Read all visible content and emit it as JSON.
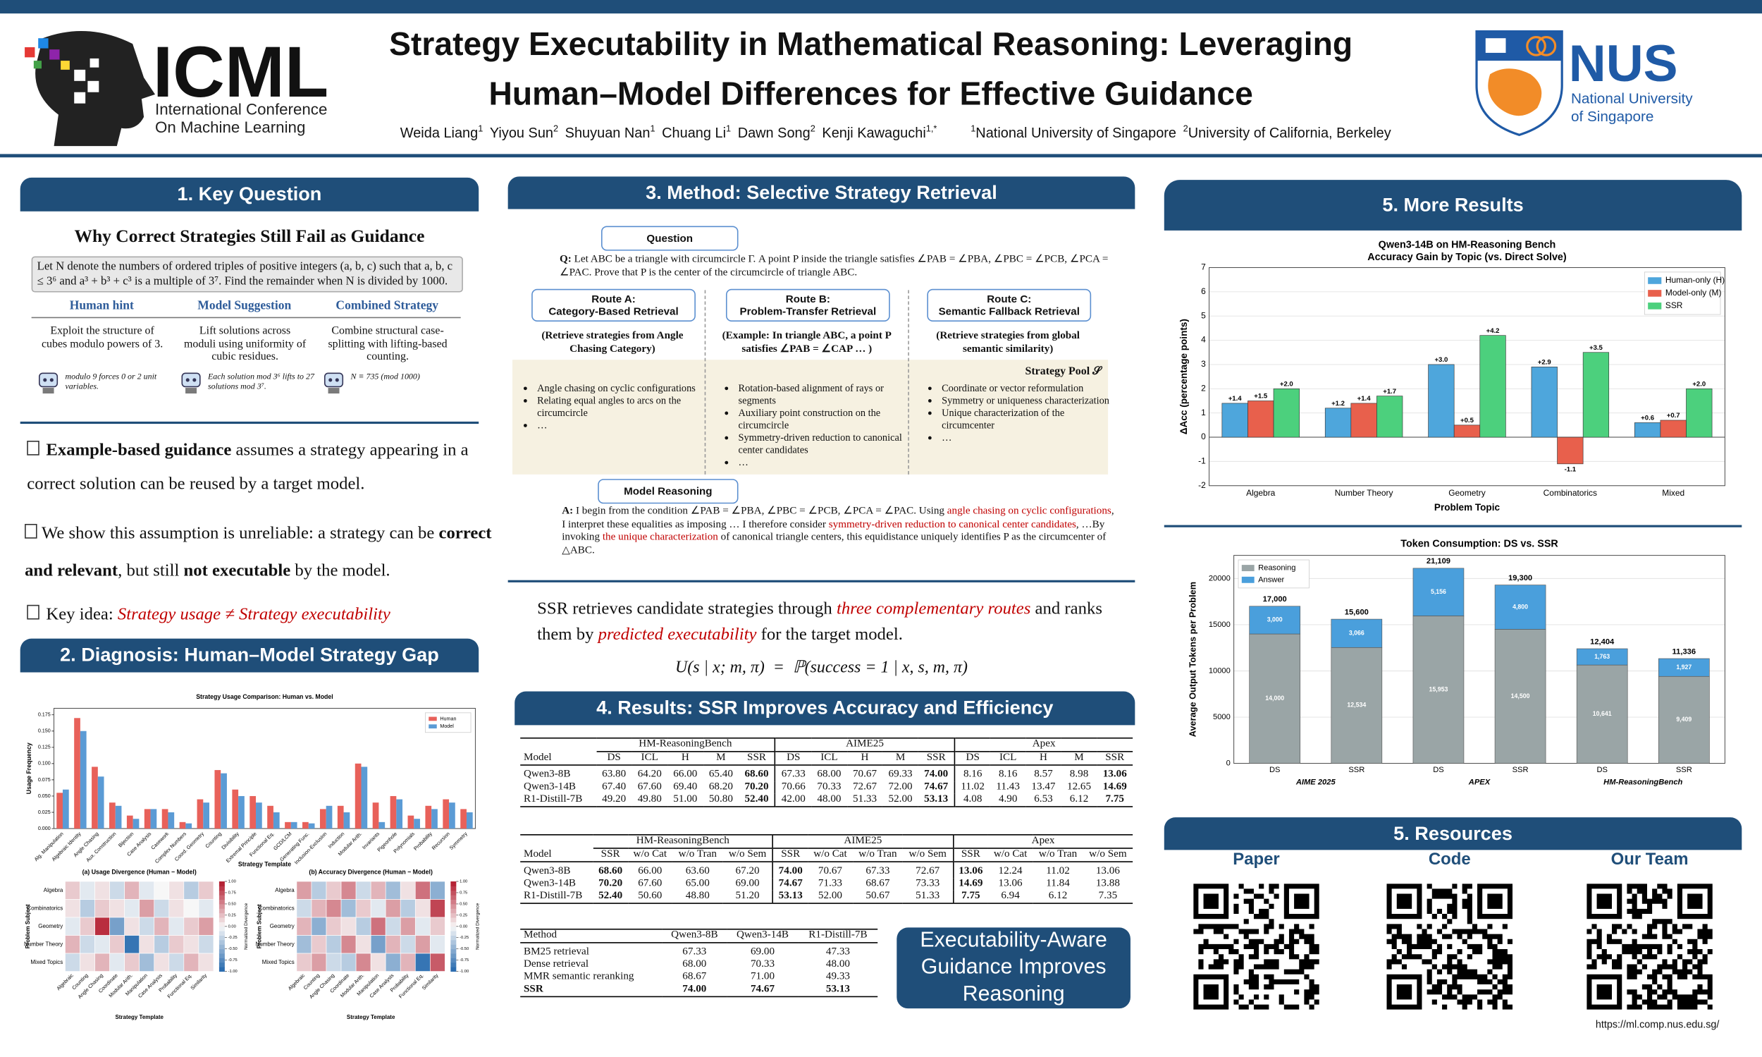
{
  "header": {
    "conference": "ICML",
    "conference_full": [
      "International Conference",
      "On Machine Learning"
    ],
    "title": [
      "Strategy Executability in Mathematical Reasoning: Leveraging",
      "Human–Model Differences for Effective Guidance"
    ],
    "authors": [
      {
        "name": "Weida Liang",
        "aff": "1"
      },
      {
        "name": "Yiyou Sun",
        "aff": "2"
      },
      {
        "name": "Shuyuan Nan",
        "aff": "1"
      },
      {
        "name": "Chuang Li",
        "aff": "1"
      },
      {
        "name": "Dawn Song",
        "aff": "2"
      },
      {
        "name": "Kenji Kawaguchi",
        "aff": "1,*"
      }
    ],
    "affiliations": [
      {
        "num": "1",
        "name": "National University of Singapore"
      },
      {
        "num": "2",
        "name": "University of California, Berkeley"
      }
    ],
    "university": "NUS",
    "university_full": [
      "National University",
      "of Singapore"
    ]
  },
  "key_question": {
    "heading": "1. Key Question",
    "subtitle": "Why Correct Strategies Still Fail as Guidance",
    "problem": "Let N denote the numbers of ordered triples of positive integers (a, b, c) such that a, b, c ≤ 3⁶ and a³ + b³ + c³ is a multiple of 3⁷. Find the remainder when N is divided by 1000.",
    "columns": [
      {
        "head": "Human hint",
        "text": "Exploit the structure of cubes modulo powers of 3.",
        "note": "modulo 9 forces 0 or 2 unit variables."
      },
      {
        "head": "Model Suggestion",
        "text": "Lift solutions across moduli using uniformity of cubic residues.",
        "note": "Each solution mod 3⁶ lifts to 27 solutions mod 3⁷."
      },
      {
        "head": "Combined Strategy",
        "text": "Combine structural case-splitting with lifting-based counting.",
        "note": "N ≡ 735 (mod 1000)"
      }
    ],
    "bullet1": [
      "Example-based guidance",
      " assumes a strategy appearing in a correct solution can be reused by a target model."
    ],
    "bullet2": [
      "We show this assumption is unreliable: a strategy can be ",
      "correct and relevant",
      ", but still ",
      "not executable",
      " by the model."
    ],
    "bullet3": [
      "Key idea: ",
      "Strategy usage ≠ Strategy executability"
    ]
  },
  "diagnosis": {
    "heading": "2. Diagnosis: Human–Model Strategy Gap"
  },
  "method": {
    "heading": "3. Method: Selective Strategy Retrieval",
    "question_label": "Question",
    "question": [
      "Q:",
      " Let ABC be a triangle with circumcircle Γ. A point P inside the triangle satisfies ∠PAB = ∠PBA, ∠PBC = ∠PCB, ∠PCA = ∠PAC. Prove that P is the center of the circumcircle of triangle ABC."
    ],
    "routes": [
      {
        "title": "Route A:",
        "name": "Category-Based Retrieval",
        "desc": "(Retrieve strategies from Angle Chasing Category)",
        "items": [
          "Angle chasing on cyclic configurations",
          "Relating equal angles to arcs on the circumcircle",
          "…"
        ]
      },
      {
        "title": "Route B:",
        "name": "Problem-Transfer Retrieval",
        "desc": "(Example: In triangle ABC, a point P satisfies ∠PAB = ∠CAP … )",
        "items": [
          "Rotation-based alignment of rays or segments",
          "Auxiliary point construction on the circumcircle",
          "Symmetry-driven reduction to canonical center candidates",
          "…"
        ]
      },
      {
        "title": "Route C:",
        "name": "Semantic Fallback Retrieval",
        "desc": "(Retrieve strategies from global semantic similarity)",
        "items": [
          "Coordinate or vector reformulation",
          "Symmetry or uniqueness characterization",
          "Unique characterization of the circumcenter",
          "…"
        ]
      }
    ],
    "pool": "Strategy Pool 𝒮",
    "reasoning_label": "Model Reasoning",
    "answer": [
      "A:",
      " I begin from the condition ∠PAB = ∠PBA, ∠PBC = ∠PCB, ∠PCA = ∠PAC. Using ",
      "angle chasing on cyclic configurations",
      ", I interpret these equalities as imposing … I therefore consider ",
      "symmetry-driven reduction to canonical center candidates",
      ", …By invoking ",
      "the unique characterization",
      " of canonical triangle centers, this equidistance uniquely identifies P as the circumcenter of △ABC."
    ],
    "summary": [
      "SSR retrieves candidate strategies through ",
      "three complementary routes",
      " and ranks them by ",
      "predicted executability",
      " for the target model."
    ],
    "formula": "U(s | x; m, π)  =  ℙ(success = 1 | x, s, m, π)"
  },
  "results": {
    "heading": "4. Results: SSR Improves Accuracy and Efficiency",
    "table1": {
      "groups": [
        "HM-ReasoningBench",
        "AIME25",
        "Apex"
      ],
      "columns": [
        "Model",
        "DS",
        "ICL",
        "H",
        "M",
        "SSR",
        "DS",
        "ICL",
        "H",
        "M",
        "SSR",
        "DS",
        "ICL",
        "H",
        "M",
        "SSR"
      ],
      "rows": [
        [
          "Qwen3-8B",
          "63.80",
          "64.20",
          "66.00",
          "65.40",
          "68.60",
          "67.33",
          "68.00",
          "70.67",
          "69.33",
          "74.00",
          "8.16",
          "8.16",
          "8.57",
          "8.98",
          "13.06"
        ],
        [
          "Qwen3-14B",
          "67.40",
          "67.60",
          "69.40",
          "68.20",
          "70.20",
          "70.66",
          "70.33",
          "72.67",
          "72.00",
          "74.67",
          "11.02",
          "11.43",
          "13.47",
          "12.65",
          "14.69"
        ],
        [
          "R1-Distill-7B",
          "49.20",
          "49.80",
          "51.00",
          "50.80",
          "52.40",
          "42.00",
          "48.00",
          "51.33",
          "52.00",
          "53.13",
          "4.08",
          "4.90",
          "6.53",
          "6.12",
          "7.75"
        ]
      ]
    },
    "table2": {
      "groups": [
        "HM-ReasoningBench",
        "AIME25",
        "Apex"
      ],
      "columns": [
        "Model",
        "SSR",
        "w/o Cat",
        "w/o Tran",
        "w/o Sem",
        "SSR",
        "w/o Cat",
        "w/o Tran",
        "w/o Sem",
        "SSR",
        "w/o Cat",
        "w/o Tran",
        "w/o Sem"
      ],
      "rows": [
        [
          "Qwen3-8B",
          "68.60",
          "66.00",
          "63.60",
          "67.20",
          "74.00",
          "70.67",
          "67.33",
          "72.67",
          "13.06",
          "12.24",
          "11.02",
          "13.06"
        ],
        [
          "Qwen3-14B",
          "70.20",
          "67.60",
          "65.00",
          "69.00",
          "74.67",
          "71.33",
          "68.67",
          "73.33",
          "14.69",
          "13.06",
          "11.84",
          "13.88"
        ],
        [
          "R1-Distill-7B",
          "52.40",
          "50.60",
          "48.80",
          "51.20",
          "53.13",
          "52.00",
          "50.67",
          "51.33",
          "7.75",
          "6.94",
          "6.12",
          "7.35"
        ]
      ]
    },
    "table3": {
      "columns": [
        "Method",
        "Qwen3-8B",
        "Qwen3-14B",
        "R1-Distill-7B"
      ],
      "rows": [
        [
          "BM25 retrieval",
          "67.33",
          "69.00",
          "47.33"
        ],
        [
          "Dense retrieval",
          "68.00",
          "70.33",
          "48.00"
        ],
        [
          "MMR semantic reranking",
          "68.67",
          "71.00",
          "49.33"
        ],
        [
          "SSR",
          "74.00",
          "74.67",
          "53.13"
        ]
      ]
    },
    "callout": "Executability-Aware Guidance Improves Reasoning"
  },
  "more_results": {
    "heading": "5. More Results"
  },
  "resources": {
    "heading": "5. Resources",
    "links": [
      "Paper",
      "Code",
      "Our Team"
    ],
    "url": "https://ml.comp.nus.edu.sg/"
  },
  "chart_data": [
    {
      "type": "bar",
      "title": "Strategy Usage Comparison: Human vs. Model",
      "xlabel": "Strategy Template",
      "ylabel": "Usage Frequency",
      "categories": [
        "Alg. Manipulation",
        "Algebraic Identity",
        "Angle Chasing",
        "Aux. Construction",
        "Bijection",
        "Case Analysis",
        "Casework",
        "Complex Numbers",
        "Coord. Geometry",
        "Counting",
        "Divisibility",
        "Extremal Principle",
        "Functional Eq.",
        "GCD/LCM",
        "Generating Func.",
        "Inclusion-Exclusion",
        "Induction",
        "Modular Arith.",
        "Invariants",
        "Pigeonhole",
        "Polynomials",
        "Probability",
        "Recursion",
        "Symmetry"
      ],
      "series": [
        {
          "name": "Human",
          "color": "#e8615a",
          "values": [
            0.055,
            0.17,
            0.095,
            0.04,
            0.02,
            0.03,
            0.03,
            0.01,
            0.045,
            0.09,
            0.06,
            0.05,
            0.035,
            0.01,
            0.01,
            0.03,
            0.035,
            0.1,
            0.04,
            0.05,
            0.02,
            0.035,
            0.045,
            0.03
          ]
        },
        {
          "name": "Model",
          "color": "#5b9bd5",
          "values": [
            0.06,
            0.15,
            0.08,
            0.035,
            0.015,
            0.03,
            0.025,
            0.008,
            0.04,
            0.085,
            0.05,
            0.04,
            0.025,
            0.01,
            0.008,
            0.035,
            0.025,
            0.095,
            0.01,
            0.045,
            0.015,
            0.03,
            0.04,
            0.025
          ]
        }
      ],
      "ylim": [
        0,
        0.185
      ],
      "yticks": [
        {
          "value": 0,
          "label": "0.000"
        },
        {
          "value": 0.025,
          "label": "0.025"
        },
        {
          "value": 0.05,
          "label": "0.050"
        },
        {
          "value": 0.075,
          "label": "0.075"
        },
        {
          "value": 0.1,
          "label": "0.100"
        },
        {
          "value": 0.125,
          "label": "0.125"
        },
        {
          "value": 0.15,
          "label": "0.150"
        },
        {
          "value": 0.175,
          "label": "0.175"
        }
      ],
      "grid": false,
      "legend": "upper right"
    },
    {
      "type": "heatmap",
      "title": "(a) Usage Divergence (Human − Model)",
      "xlabel": "Strategy Template",
      "ylabel": "Problem Subject",
      "rows": [
        "Algebra",
        "Combinatorics",
        "Geometry",
        "Number Theory",
        "Mixed Topics"
      ],
      "columns": [
        "Algebraic",
        "Counting",
        "Angle Chasing",
        "Coordinate",
        "Modular Arith.",
        "Manipulation",
        "Case Analysis",
        "Probability",
        "Functional Eq.",
        "Similarity"
      ],
      "values": [
        [
          0.2,
          -0.1,
          0.1,
          -0.2,
          0.3,
          -0.1,
          0.0,
          0.1,
          -0.3,
          0.2
        ],
        [
          0.1,
          -0.3,
          0.2,
          0.1,
          -0.1,
          0.4,
          -0.2,
          0.1,
          0.0,
          -0.1
        ],
        [
          -0.1,
          0.2,
          0.9,
          -0.6,
          0.1,
          -0.2,
          0.3,
          -0.1,
          0.2,
          0.4
        ],
        [
          0.3,
          -0.2,
          -0.1,
          0.2,
          -0.9,
          0.1,
          -0.3,
          0.2,
          0.1,
          -0.2
        ],
        [
          -0.2,
          0.1,
          0.3,
          -0.1,
          0.2,
          -0.4,
          0.1,
          -0.2,
          0.3,
          0.1
        ]
      ],
      "clim": [
        -1,
        1
      ],
      "colorbar_label": "Normalized Divergence",
      "colorbar_ticks": [
        {
          "value": 1,
          "label": "1.00"
        },
        {
          "value": 0.75,
          "label": "0.75"
        },
        {
          "value": 0.5,
          "label": "0.50"
        },
        {
          "value": 0.25,
          "label": "0.25"
        },
        {
          "value": 0,
          "label": "0.00"
        },
        {
          "value": -0.25,
          "label": "-0.25"
        },
        {
          "value": -0.5,
          "label": "-0.50"
        },
        {
          "value": -0.75,
          "label": "-0.75"
        },
        {
          "value": -1,
          "label": "-1.00"
        }
      ]
    },
    {
      "type": "heatmap",
      "title": "(b) Accuracy Divergence (Human − Model)",
      "xlabel": "Strategy Template",
      "ylabel": "Problem Subject",
      "rows": [
        "Algebra",
        "Combinatorics",
        "Geometry",
        "Number Theory",
        "Mixed Topics"
      ],
      "columns": [
        "Algebraic",
        "Counting",
        "Angle Chasing",
        "Coordinate",
        "Modular Arith.",
        "Manipulation",
        "Case Analysis",
        "Probability",
        "Functional Eq.",
        "Similarity"
      ],
      "values": [
        [
          0.4,
          -0.3,
          0.2,
          0.5,
          -0.2,
          0.3,
          -0.4,
          0.1,
          0.6,
          -0.5
        ],
        [
          -0.2,
          0.3,
          0.5,
          -0.4,
          0.2,
          -0.1,
          0.4,
          -0.3,
          0.1,
          0.8
        ],
        [
          0.3,
          -0.5,
          0.2,
          0.1,
          -0.3,
          0.6,
          -0.2,
          0.4,
          -0.1,
          0.2
        ],
        [
          -0.4,
          0.2,
          -0.3,
          0.5,
          0.1,
          -0.6,
          0.3,
          -0.2,
          0.4,
          -0.1
        ],
        [
          0.2,
          0.4,
          -0.2,
          -0.3,
          0.5,
          0.1,
          -0.5,
          0.3,
          -0.9,
          0.7
        ]
      ],
      "clim": [
        -1,
        1
      ],
      "colorbar_label": "Normalized Divergence",
      "colorbar_ticks": [
        {
          "value": 1,
          "label": "1.00"
        },
        {
          "value": 0.75,
          "label": "0.75"
        },
        {
          "value": 0.5,
          "label": "0.50"
        },
        {
          "value": 0.25,
          "label": "0.25"
        },
        {
          "value": 0,
          "label": "0.00"
        },
        {
          "value": -0.25,
          "label": "-0.25"
        },
        {
          "value": -0.5,
          "label": "-0.50"
        },
        {
          "value": -0.75,
          "label": "-0.75"
        },
        {
          "value": -1,
          "label": "-1.00"
        }
      ]
    },
    {
      "type": "bar",
      "title": "Qwen3-14B on HM-Reasoning Bench",
      "subtitle": "Accuracy Gain by Topic (vs. Direct Solve)",
      "xlabel": "Problem Topic",
      "ylabel": "ΔAcc (percentage points)",
      "categories": [
        "Algebra",
        "Number Theory",
        "Geometry",
        "Combinatorics",
        "Mixed"
      ],
      "series": [
        {
          "name": "Human-only (H)",
          "color": "#4ea6dc",
          "values": [
            1.4,
            1.2,
            3.0,
            2.9,
            0.6
          ],
          "value_labels": [
            "+1.4",
            "+1.2",
            "+3.0",
            "+2.9",
            "+0.6"
          ]
        },
        {
          "name": "Model-only (M)",
          "color": "#e8604c",
          "values": [
            1.5,
            1.4,
            0.5,
            -1.1,
            0.7
          ],
          "value_labels": [
            "+1.5",
            "+1.4",
            "+0.5",
            "-1.1",
            "+0.7"
          ]
        },
        {
          "name": "SSR",
          "color": "#4cd07d",
          "values": [
            2.0,
            1.7,
            4.2,
            3.5,
            2.0
          ],
          "value_labels": [
            "+2.0",
            "+1.7",
            "+4.2",
            "+3.5",
            "+2.0"
          ]
        }
      ],
      "ylim": [
        -2,
        7
      ],
      "yticks": [
        -2,
        -1,
        0,
        1,
        2,
        3,
        4,
        5,
        6,
        7
      ],
      "grid": true,
      "legend": "upper right"
    },
    {
      "type": "stacked_bar",
      "title": "Token Consumption: DS vs. SSR",
      "ylabel": "Average Output Tokens per Problem",
      "categories": [
        "DS",
        "SSR",
        "DS",
        "SSR",
        "DS",
        "SSR"
      ],
      "groups": [
        "AIME 2025",
        "APEX",
        "HM-ReasoningBench"
      ],
      "series": [
        {
          "name": "Reasoning",
          "color": "#9aa5a6",
          "values": [
            14000,
            12534,
            15953,
            14500,
            10641,
            9409
          ],
          "value_labels": [
            "14,000",
            "12,534",
            "15,953",
            "14,500",
            "10,641",
            "9,409"
          ]
        },
        {
          "name": "Answer",
          "color": "#4a9fdc",
          "values": [
            3000,
            3066,
            5156,
            4800,
            1763,
            1927
          ],
          "value_labels": [
            "3,000",
            "3,066",
            "5,156",
            "4,800",
            "1,763",
            "1,927"
          ]
        }
      ],
      "total_labels": [
        "17,000",
        "15,600",
        "21,109",
        "19,300",
        "12,404",
        "11,336"
      ],
      "ylim": [
        0,
        22500
      ],
      "yticks": [
        0,
        5000,
        10000,
        15000,
        20000
      ],
      "grid": true,
      "legend": "upper left"
    }
  ]
}
